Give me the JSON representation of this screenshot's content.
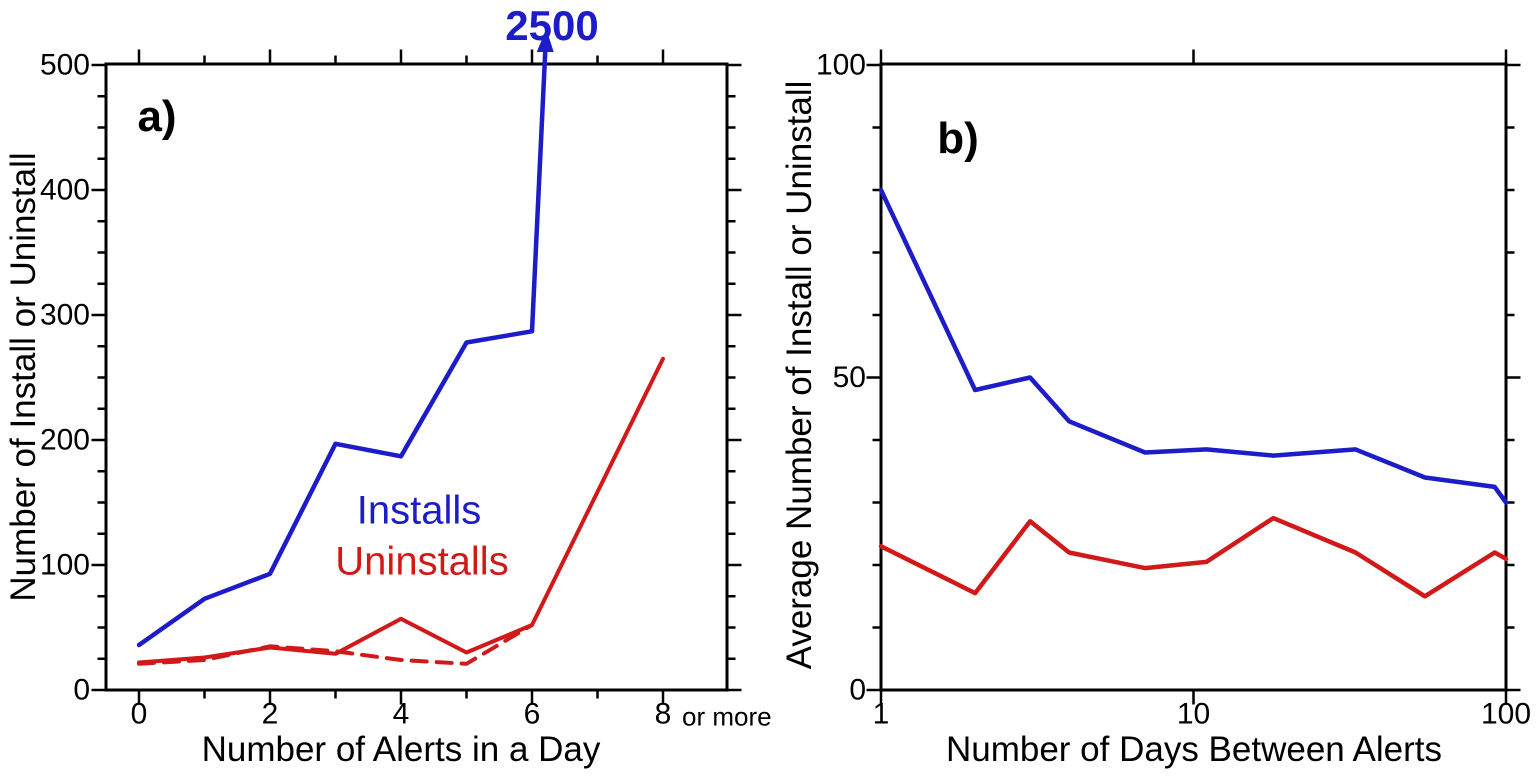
{
  "figure": {
    "background": "#ffffff",
    "panel_a": {
      "label": "a)",
      "annotation_2500": "2500",
      "legend": {
        "installs": "Installs",
        "uninstalls": "Uninstalls"
      },
      "x_axis": {
        "title": "Number of Alerts in a Day",
        "tick_labels": [
          "0",
          "2",
          "4",
          "6",
          "8"
        ],
        "suffix_label": "or more"
      },
      "y_axis": {
        "title": "Number of Install or Uninstall",
        "tick_labels": [
          "0",
          "100",
          "200",
          "300",
          "400",
          "500"
        ]
      }
    },
    "panel_b": {
      "label": "b)",
      "x_axis": {
        "title": "Number of Days Between Alerts",
        "tick_labels": [
          "1",
          "10",
          "100"
        ]
      },
      "y_axis": {
        "title": "Average Number of Install or Uninstall",
        "tick_labels": [
          "0",
          "50",
          "100"
        ]
      }
    }
  },
  "colors": {
    "installs": "#1c1cc8",
    "uninstalls": "#d21919",
    "axis": "#000000"
  },
  "chart_data": [
    {
      "panel": "a",
      "type": "line",
      "title": "",
      "xlabel": "Number of Alerts in a Day",
      "ylabel": "Number of Install or Uninstall",
      "xlim": [
        -0.5,
        9
      ],
      "ylim": [
        0,
        500
      ],
      "x_major_ticks": [
        0,
        2,
        4,
        6,
        8
      ],
      "x_minor_ticks": [
        1,
        3,
        5,
        7
      ],
      "y_major_ticks": [
        0,
        100,
        200,
        300,
        400,
        500
      ],
      "y_minor_step": 25,
      "grid": false,
      "legend_position": "center",
      "x_category_note": "8 means 8 or more",
      "series": [
        {
          "name": "Installs",
          "color_key": "installs",
          "style": "solid",
          "x": [
            0,
            1,
            2,
            3,
            4,
            5,
            6,
            8
          ],
          "y": [
            36,
            73,
            93,
            197,
            187,
            278,
            287,
            2500
          ],
          "off_scale_note": "final point (8, 2500) exceeds axis range; drawn clipped with an upward arrow labeled 2500"
        },
        {
          "name": "Uninstalls",
          "color_key": "uninstalls",
          "style": "solid",
          "x": [
            0,
            1,
            2,
            3,
            4,
            5,
            6,
            8
          ],
          "y": [
            22,
            26,
            34,
            29,
            57,
            30,
            52,
            265
          ]
        },
        {
          "name": "Uninstalls (alternate)",
          "color_key": "uninstalls",
          "style": "dashed",
          "x": [
            0,
            1,
            2,
            3,
            4,
            5,
            6
          ],
          "y": [
            21,
            24,
            35,
            31,
            24,
            21,
            52
          ]
        }
      ]
    },
    {
      "panel": "b",
      "type": "line",
      "xscale": "log",
      "xlabel": "Number of Days Between Alerts",
      "ylabel": "Average Number of Install or Uninstall",
      "xlim": [
        1,
        100
      ],
      "ylim": [
        0,
        100
      ],
      "x_major_ticks": [
        1,
        10,
        100
      ],
      "y_major_ticks": [
        0,
        50,
        100
      ],
      "y_minor_step": 10,
      "grid": false,
      "series": [
        {
          "name": "Installs",
          "color_key": "installs",
          "style": "solid",
          "x": [
            1,
            2,
            3,
            4,
            7,
            11,
            18,
            33,
            55,
            92,
            100
          ],
          "y": [
            80,
            48,
            50,
            43,
            38,
            38.5,
            37.5,
            38.5,
            34,
            32.5,
            30
          ]
        },
        {
          "name": "Uninstalls",
          "color_key": "uninstalls",
          "style": "solid",
          "x": [
            1,
            2,
            3,
            4,
            7,
            11,
            18,
            33,
            55,
            92,
            100
          ],
          "y": [
            23,
            15.5,
            27,
            22,
            19.5,
            20.5,
            27.5,
            22,
            15,
            22,
            21
          ]
        }
      ]
    }
  ]
}
